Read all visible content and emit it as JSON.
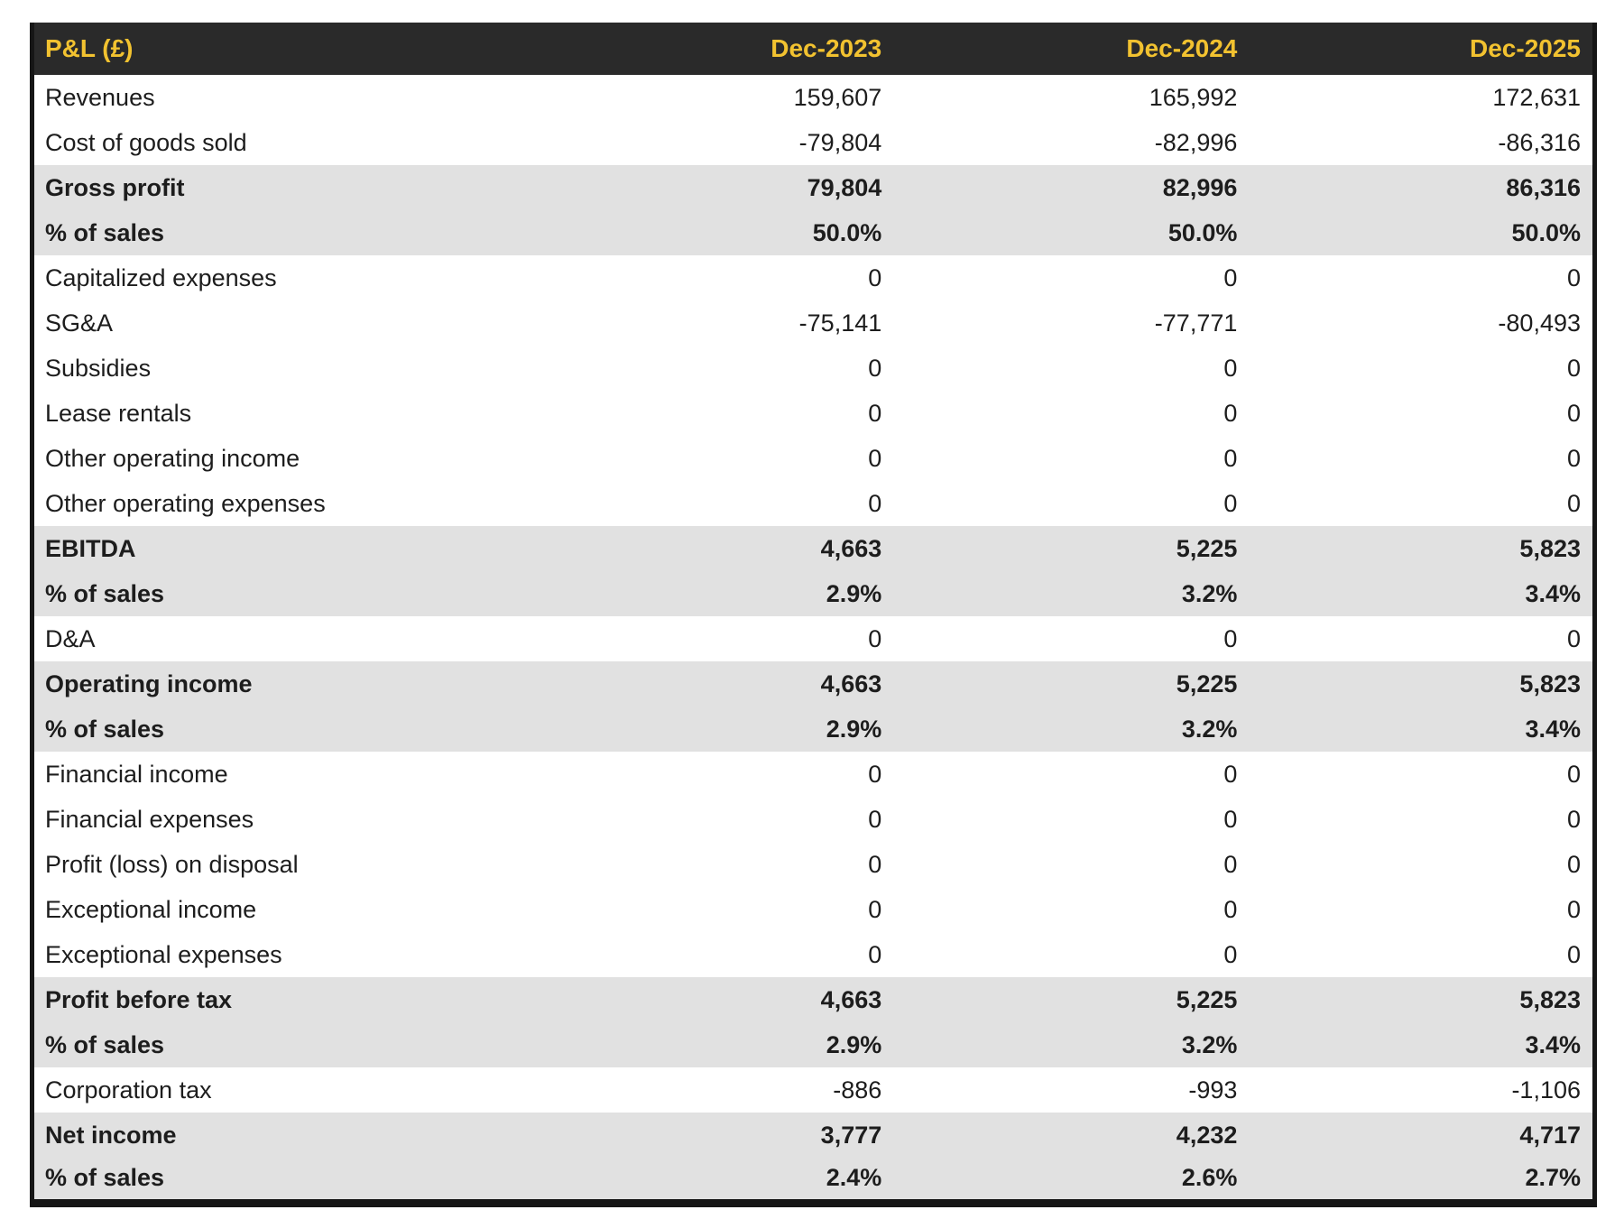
{
  "chart_data": {
    "type": "table",
    "title": "P&L (£)",
    "currency": "£",
    "columns": [
      "P&L (£)",
      "Dec-2023",
      "Dec-2024",
      "Dec-2025"
    ],
    "rows": [
      {
        "label": "Revenues",
        "values": [
          "159,607",
          "165,992",
          "172,631"
        ],
        "emphasis": false
      },
      {
        "label": "Cost of goods sold",
        "values": [
          "-79,804",
          "-82,996",
          "-86,316"
        ],
        "emphasis": false
      },
      {
        "label": "Gross profit",
        "values": [
          "79,804",
          "82,996",
          "86,316"
        ],
        "emphasis": true
      },
      {
        "label": "% of sales",
        "values": [
          "50.0%",
          "50.0%",
          "50.0%"
        ],
        "emphasis": true
      },
      {
        "label": "Capitalized expenses",
        "values": [
          "0",
          "0",
          "0"
        ],
        "emphasis": false
      },
      {
        "label": "SG&A",
        "values": [
          "-75,141",
          "-77,771",
          "-80,493"
        ],
        "emphasis": false
      },
      {
        "label": "Subsidies",
        "values": [
          "0",
          "0",
          "0"
        ],
        "emphasis": false
      },
      {
        "label": "Lease rentals",
        "values": [
          "0",
          "0",
          "0"
        ],
        "emphasis": false
      },
      {
        "label": "Other operating income",
        "values": [
          "0",
          "0",
          "0"
        ],
        "emphasis": false
      },
      {
        "label": "Other operating expenses",
        "values": [
          "0",
          "0",
          "0"
        ],
        "emphasis": false
      },
      {
        "label": "EBITDA",
        "values": [
          "4,663",
          "5,225",
          "5,823"
        ],
        "emphasis": true
      },
      {
        "label": "% of sales",
        "values": [
          "2.9%",
          "3.2%",
          "3.4%"
        ],
        "emphasis": true
      },
      {
        "label": "D&A",
        "values": [
          "0",
          "0",
          "0"
        ],
        "emphasis": false
      },
      {
        "label": "Operating income",
        "values": [
          "4,663",
          "5,225",
          "5,823"
        ],
        "emphasis": true
      },
      {
        "label": "% of sales",
        "values": [
          "2.9%",
          "3.2%",
          "3.4%"
        ],
        "emphasis": true
      },
      {
        "label": "Financial income",
        "values": [
          "0",
          "0",
          "0"
        ],
        "emphasis": false
      },
      {
        "label": "Financial expenses",
        "values": [
          "0",
          "0",
          "0"
        ],
        "emphasis": false
      },
      {
        "label": "Profit (loss) on disposal",
        "values": [
          "0",
          "0",
          "0"
        ],
        "emphasis": false
      },
      {
        "label": "Exceptional income",
        "values": [
          "0",
          "0",
          "0"
        ],
        "emphasis": false
      },
      {
        "label": "Exceptional expenses",
        "values": [
          "0",
          "0",
          "0"
        ],
        "emphasis": false
      },
      {
        "label": "Profit before tax",
        "values": [
          "4,663",
          "5,225",
          "5,823"
        ],
        "emphasis": true
      },
      {
        "label": "% of sales",
        "values": [
          "2.9%",
          "3.2%",
          "3.4%"
        ],
        "emphasis": true
      },
      {
        "label": "Corporation tax",
        "values": [
          "-886",
          "-993",
          "-1,106"
        ],
        "emphasis": false
      },
      {
        "label": "Net income",
        "values": [
          "3,777",
          "4,232",
          "4,717"
        ],
        "emphasis": true
      },
      {
        "label": "% of sales",
        "values": [
          "2.4%",
          "2.6%",
          "2.7%"
        ],
        "emphasis": true
      }
    ],
    "layout": {
      "legend": "none",
      "grid": "off",
      "emphasis_style": "gray-band-bold"
    }
  },
  "colors": {
    "header_bg": "#2a2a2a",
    "header_text": "#f2c230",
    "highlight_row_bg": "#e1e1e1",
    "row_bg": "#ffffff",
    "text": "#1d1d1d",
    "border": "#161616"
  }
}
